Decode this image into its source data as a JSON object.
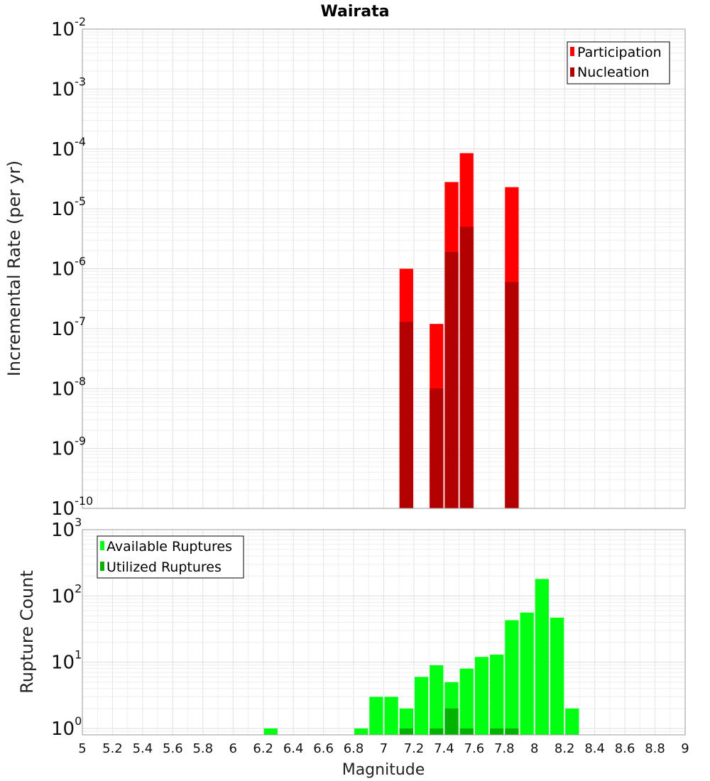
{
  "chart_data": [
    {
      "type": "bar",
      "title": "Wairata",
      "ylabel": "Incremental Rate (per yr)",
      "yscale": "log",
      "ylim": [
        1e-10,
        0.01
      ],
      "xlim": [
        5,
        9
      ],
      "bin_width": 0.1,
      "yticks": [
        {
          "base": "10",
          "exp": "-10"
        },
        {
          "base": "10",
          "exp": "-9"
        },
        {
          "base": "10",
          "exp": "-8"
        },
        {
          "base": "10",
          "exp": "-7"
        },
        {
          "base": "10",
          "exp": "-6"
        },
        {
          "base": "10",
          "exp": "-5"
        },
        {
          "base": "10",
          "exp": "-4"
        },
        {
          "base": "10",
          "exp": "-3"
        },
        {
          "base": "10",
          "exp": "-2"
        }
      ],
      "legend_position": "top-right",
      "grid": true,
      "series": [
        {
          "name": "Participation",
          "color": "#ff0000",
          "x": [
            7.15,
            7.35,
            7.45,
            7.55,
            7.85
          ],
          "values": [
            1e-06,
            1.2e-07,
            2.8e-05,
            8.5e-05,
            2.3e-05
          ]
        },
        {
          "name": "Nucleation",
          "color": "#b30000",
          "x": [
            7.15,
            7.35,
            7.45,
            7.55,
            7.85
          ],
          "values": [
            1.3e-07,
            1e-08,
            1.9e-06,
            5e-06,
            6e-07
          ]
        }
      ]
    },
    {
      "type": "bar",
      "ylabel": "Rupture Count",
      "xlabel": "Magnitude",
      "yscale": "log",
      "ylim": [
        0.8,
        1000
      ],
      "xlim": [
        5,
        9
      ],
      "bin_width": 0.1,
      "xticks": [
        "5",
        "5.2",
        "5.4",
        "5.6",
        "5.8",
        "6",
        "6.2",
        "6.4",
        "6.6",
        "6.8",
        "7",
        "7.2",
        "7.4",
        "7.6",
        "7.8",
        "8",
        "8.2",
        "8.4",
        "8.6",
        "8.8",
        "9"
      ],
      "yticks": [
        {
          "base": "10",
          "exp": "0"
        },
        {
          "base": "10",
          "exp": "1"
        },
        {
          "base": "10",
          "exp": "2"
        },
        {
          "base": "10",
          "exp": "3"
        }
      ],
      "legend_position": "top-left",
      "grid": true,
      "series": [
        {
          "name": "Available Ruptures",
          "color": "#00ff11",
          "x": [
            6.25,
            6.85,
            6.95,
            7.05,
            7.15,
            7.25,
            7.35,
            7.45,
            7.55,
            7.65,
            7.75,
            7.85,
            7.95,
            8.05,
            8.15,
            8.25
          ],
          "values": [
            1,
            1,
            3,
            3,
            2,
            6,
            9,
            5,
            8,
            12,
            13,
            43,
            56,
            180,
            47,
            2
          ]
        },
        {
          "name": "Utilized Ruptures",
          "color": "#00b300",
          "x": [
            7.15,
            7.35,
            7.45,
            7.55,
            7.75,
            7.85
          ],
          "values": [
            1,
            1,
            2,
            1,
            1,
            1
          ]
        }
      ]
    }
  ]
}
